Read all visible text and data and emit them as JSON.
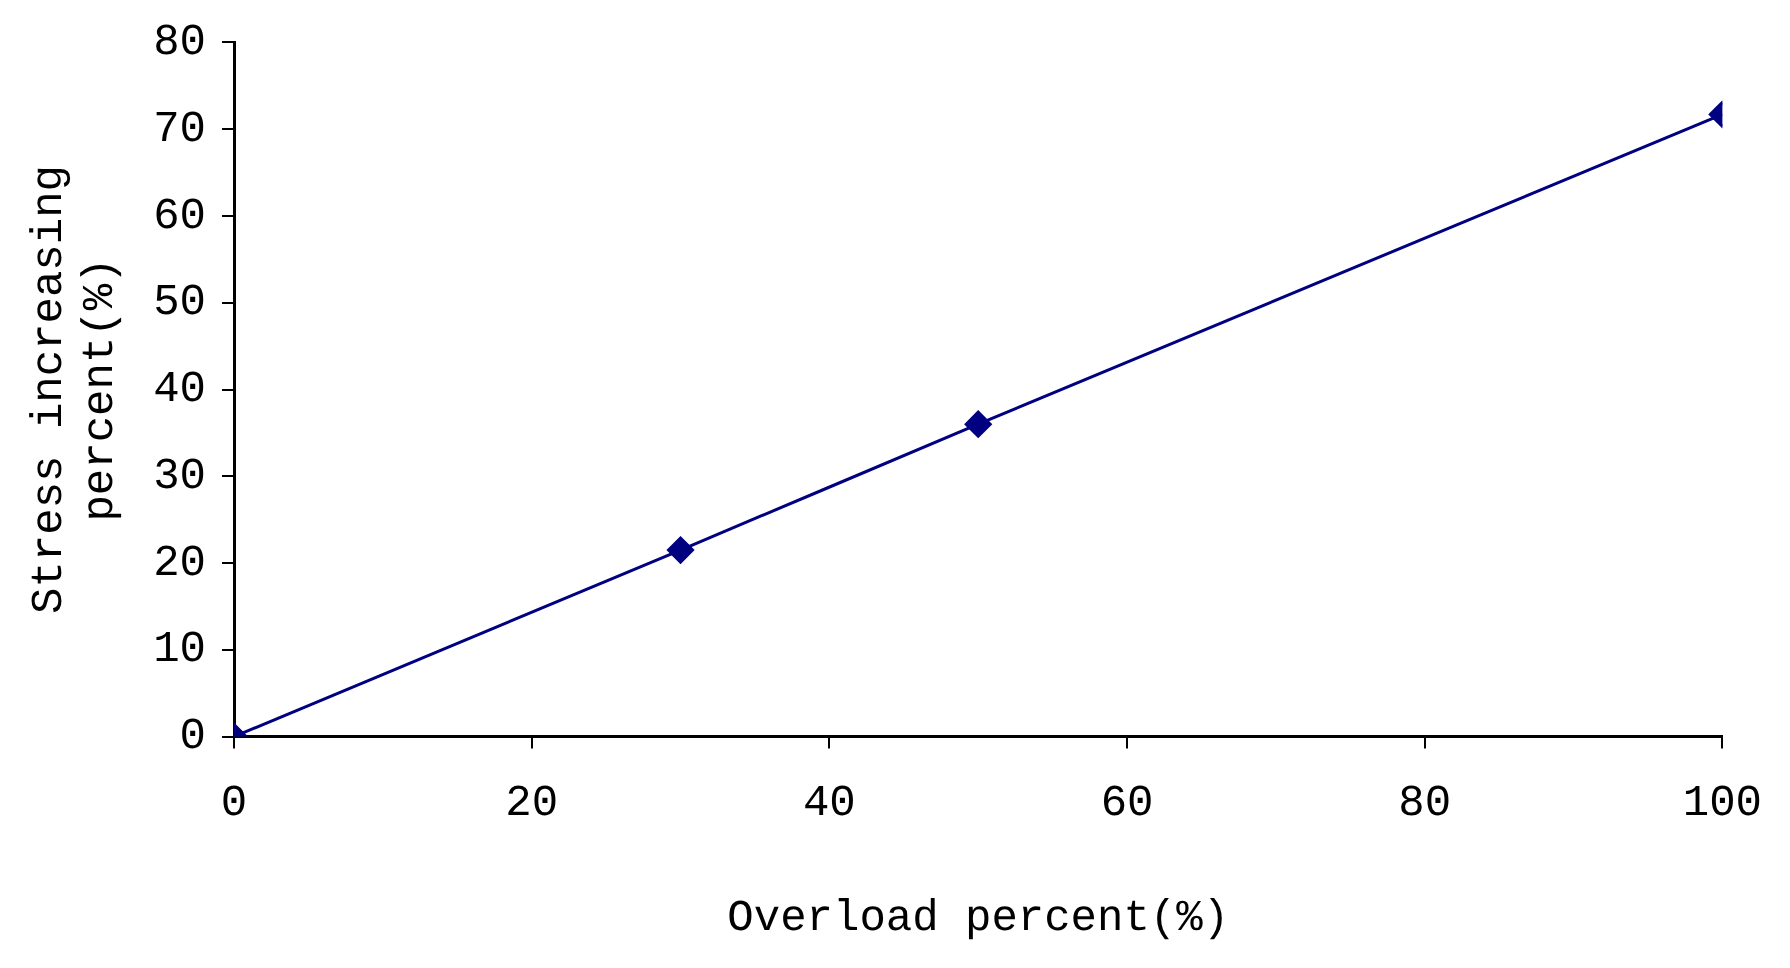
{
  "chart_data": {
    "type": "line",
    "xlabel": "Overload percent(%)",
    "ylabel": "Stress increasing percent(%)",
    "x": [
      0,
      30,
      50,
      100
    ],
    "series": [
      {
        "color": "#000080",
        "values": [
          0,
          21.5,
          36,
          71.7
        ]
      }
    ],
    "xlim": [
      0,
      100
    ],
    "xticks": [
      0,
      20,
      40,
      60,
      80,
      100
    ],
    "ylim": [
      0,
      80
    ],
    "yticks": [
      0,
      10,
      20,
      30,
      40,
      50,
      60,
      70,
      80
    ],
    "grid": false,
    "legend": false,
    "marker": "diamond",
    "line_style": "solid"
  }
}
